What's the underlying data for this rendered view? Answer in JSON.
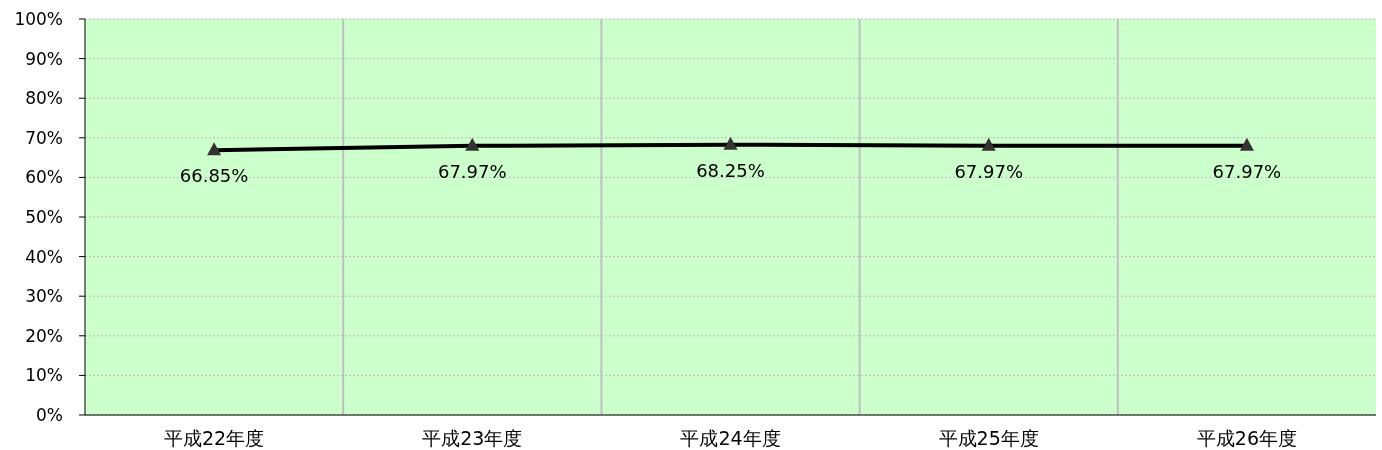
{
  "chart_data": {
    "type": "line",
    "categories": [
      "平成22年度",
      "平成23年度",
      "平成24年度",
      "平成25年度",
      "平成26年度"
    ],
    "series": [
      {
        "color": "#000000",
        "values": [
          66.85,
          67.97,
          68.25,
          67.97,
          67.97
        ],
        "value_labels": [
          "66.85%",
          "67.97%",
          "68.25%",
          "67.97%",
          "67.97%"
        ]
      }
    ],
    "ylim": [
      0,
      100
    ],
    "yticks": [
      {
        "value": 0,
        "label": "0%"
      },
      {
        "value": 10,
        "label": "10%"
      },
      {
        "value": 20,
        "label": "20%"
      },
      {
        "value": 30,
        "label": "30%"
      },
      {
        "value": 40,
        "label": "40%"
      },
      {
        "value": 50,
        "label": "50%"
      },
      {
        "value": 60,
        "label": "60%"
      },
      {
        "value": 70,
        "label": "70%"
      },
      {
        "value": 80,
        "label": "80%"
      },
      {
        "value": 90,
        "label": "90%"
      },
      {
        "value": 100,
        "label": "100%"
      }
    ],
    "grid": true,
    "marker": "triangle",
    "line_style": "solid"
  }
}
